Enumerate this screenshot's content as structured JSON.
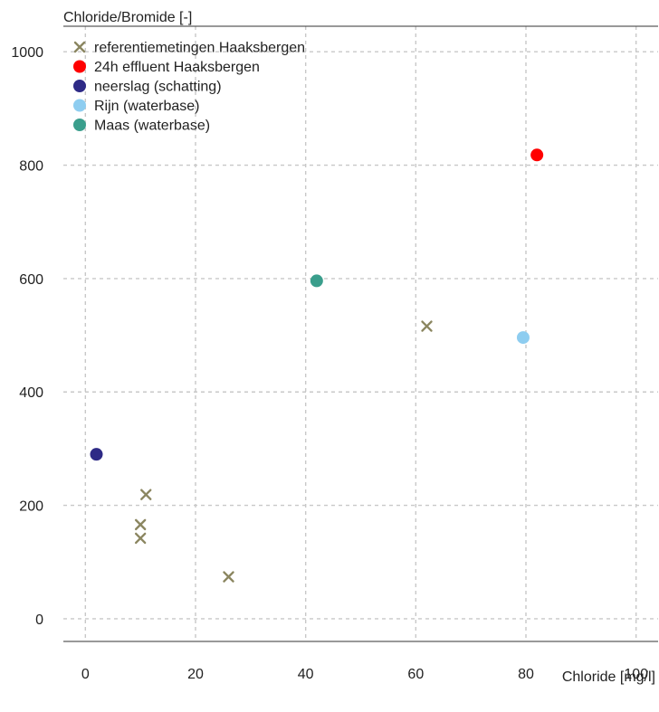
{
  "chart_data": {
    "type": "scatter",
    "ylabel": "Chloride/Bromide [-]",
    "xlabel": "Chloride [mg/l]",
    "xlim": [
      -4,
      104
    ],
    "ylim": [
      -40,
      1045
    ],
    "xticks": [
      0,
      20,
      40,
      60,
      80,
      100
    ],
    "yticks": [
      0,
      200,
      400,
      600,
      800,
      1000
    ],
    "grid": true,
    "legend_position": "top-left",
    "series": [
      {
        "name": "referentiemetingen Haaksbergen",
        "marker": "x",
        "color": "#8b8660",
        "points": [
          {
            "x": 11,
            "y": 219
          },
          {
            "x": 10,
            "y": 166
          },
          {
            "x": 10,
            "y": 142
          },
          {
            "x": 26,
            "y": 74
          },
          {
            "x": 62,
            "y": 516
          }
        ]
      },
      {
        "name": "24h effluent Haaksbergen",
        "marker": "circle",
        "color": "#ff0000",
        "points": [
          {
            "x": 82,
            "y": 818
          }
        ]
      },
      {
        "name": "neerslag (schatting)",
        "marker": "circle",
        "color": "#2e2a86",
        "points": [
          {
            "x": 2,
            "y": 290
          }
        ]
      },
      {
        "name": "Rijn (waterbase)",
        "marker": "circle",
        "color": "#8ecdf0",
        "points": [
          {
            "x": 79.5,
            "y": 496
          }
        ]
      },
      {
        "name": "Maas (waterbase)",
        "marker": "circle",
        "color": "#3a9e8c",
        "points": [
          {
            "x": 42,
            "y": 596
          }
        ]
      }
    ]
  }
}
